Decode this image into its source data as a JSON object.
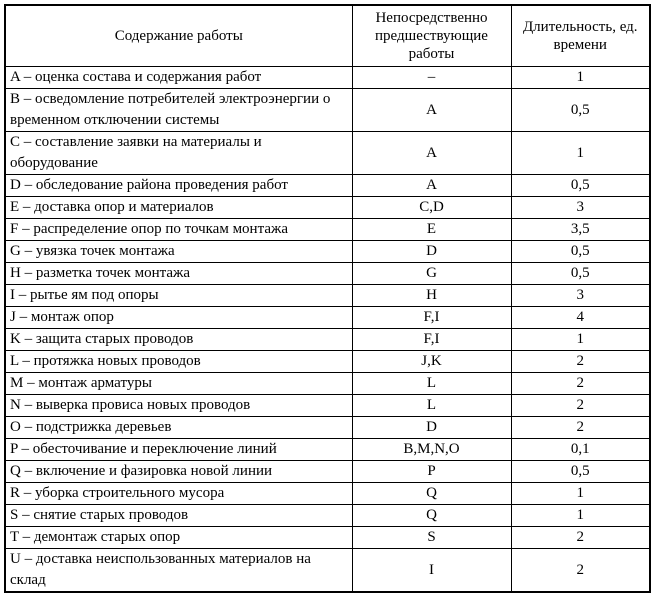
{
  "table": {
    "headers": {
      "work": "Содержание работы",
      "predecessors": "Непосредственно предшествующие работы",
      "duration": "Длительность, ед. времени"
    },
    "rows": [
      {
        "work": "A – оценка состава и содержания работ",
        "pred": "–",
        "dur": "1"
      },
      {
        "work": "B – осведомление потребителей электроэнергии о временном отключении системы",
        "pred": "A",
        "dur": "0,5"
      },
      {
        "work": "C – составление заявки на материалы и оборудование",
        "pred": "A",
        "dur": "1"
      },
      {
        "work": "D – обследование района проведения работ",
        "pred": "A",
        "dur": "0,5"
      },
      {
        "work": "E – доставка опор и материалов",
        "pred": "C,D",
        "dur": "3"
      },
      {
        "work": "F – распределение опор по точкам монтажа",
        "pred": "E",
        "dur": "3,5"
      },
      {
        "work": "G – увязка точек монтажа",
        "pred": "D",
        "dur": "0,5"
      },
      {
        "work": "H – разметка точек монтажа",
        "pred": "G",
        "dur": "0,5"
      },
      {
        "work": "I – рытье ям под опоры",
        "pred": "H",
        "dur": "3"
      },
      {
        "work": "J – монтаж опор",
        "pred": "F,I",
        "dur": "4"
      },
      {
        "work": "K – защита старых проводов",
        "pred": "F,I",
        "dur": "1"
      },
      {
        "work": "L – протяжка новых проводов",
        "pred": "J,K",
        "dur": "2"
      },
      {
        "work": "M – монтаж арматуры",
        "pred": "L",
        "dur": "2"
      },
      {
        "work": "N – выверка провиса новых проводов",
        "pred": "L",
        "dur": "2"
      },
      {
        "work": "O – подстрижка деревьев",
        "pred": "D",
        "dur": "2"
      },
      {
        "work": "P – обесточивание и переключение линий",
        "pred": "B,M,N,O",
        "dur": "0,1"
      },
      {
        "work": "Q – включение и фазировка новой линии",
        "pred": "P",
        "dur": "0,5"
      },
      {
        "work": "R – уборка строительного мусора",
        "pred": "Q",
        "dur": "1"
      },
      {
        "work": "S – снятие старых проводов",
        "pred": "Q",
        "dur": "1"
      },
      {
        "work": "T – демонтаж старых опор",
        "pred": "S",
        "dur": "2"
      },
      {
        "work": "U – доставка неиспользованных материалов на склад",
        "pred": "I",
        "dur": "2"
      }
    ],
    "colors": {
      "border": "#000000",
      "text": "#000000",
      "background": "#ffffff"
    }
  }
}
